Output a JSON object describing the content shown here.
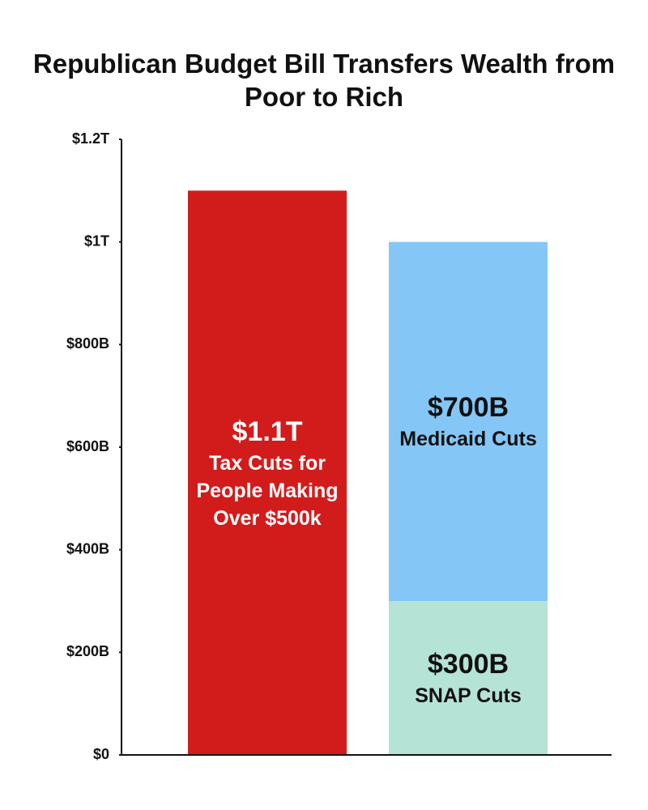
{
  "chart_data": {
    "type": "stacked_bar",
    "title": "Republican Budget Bill Transfers Wealth from Poor to Rich",
    "categories": [
      null,
      null
    ],
    "series": [
      {
        "name": "Tax Cuts for People Making Over $500k",
        "color": "#d21c1c",
        "values": [
          1100,
          null
        ],
        "value_labels": [
          "$1.1T",
          null
        ]
      },
      {
        "name": "SNAP Cuts",
        "color": "#b5e3d6",
        "values": [
          null,
          300
        ],
        "value_labels": [
          null,
          "$300B"
        ]
      },
      {
        "name": "Medicaid Cuts",
        "color": "#84c7f7",
        "values": [
          null,
          700
        ],
        "value_labels": [
          null,
          "$700B"
        ]
      }
    ],
    "ylim": [
      0,
      1200
    ],
    "yticks": [
      {
        "value": 0,
        "label": "$0"
      },
      {
        "value": 200,
        "label": "$200B"
      },
      {
        "value": 400,
        "label": "$400B"
      },
      {
        "value": 600,
        "label": "$600B"
      },
      {
        "value": 800,
        "label": "$800B"
      },
      {
        "value": 1000,
        "label": "$1T"
      },
      {
        "value": 1200,
        "label": "$1.2T"
      }
    ],
    "grid": false
  }
}
